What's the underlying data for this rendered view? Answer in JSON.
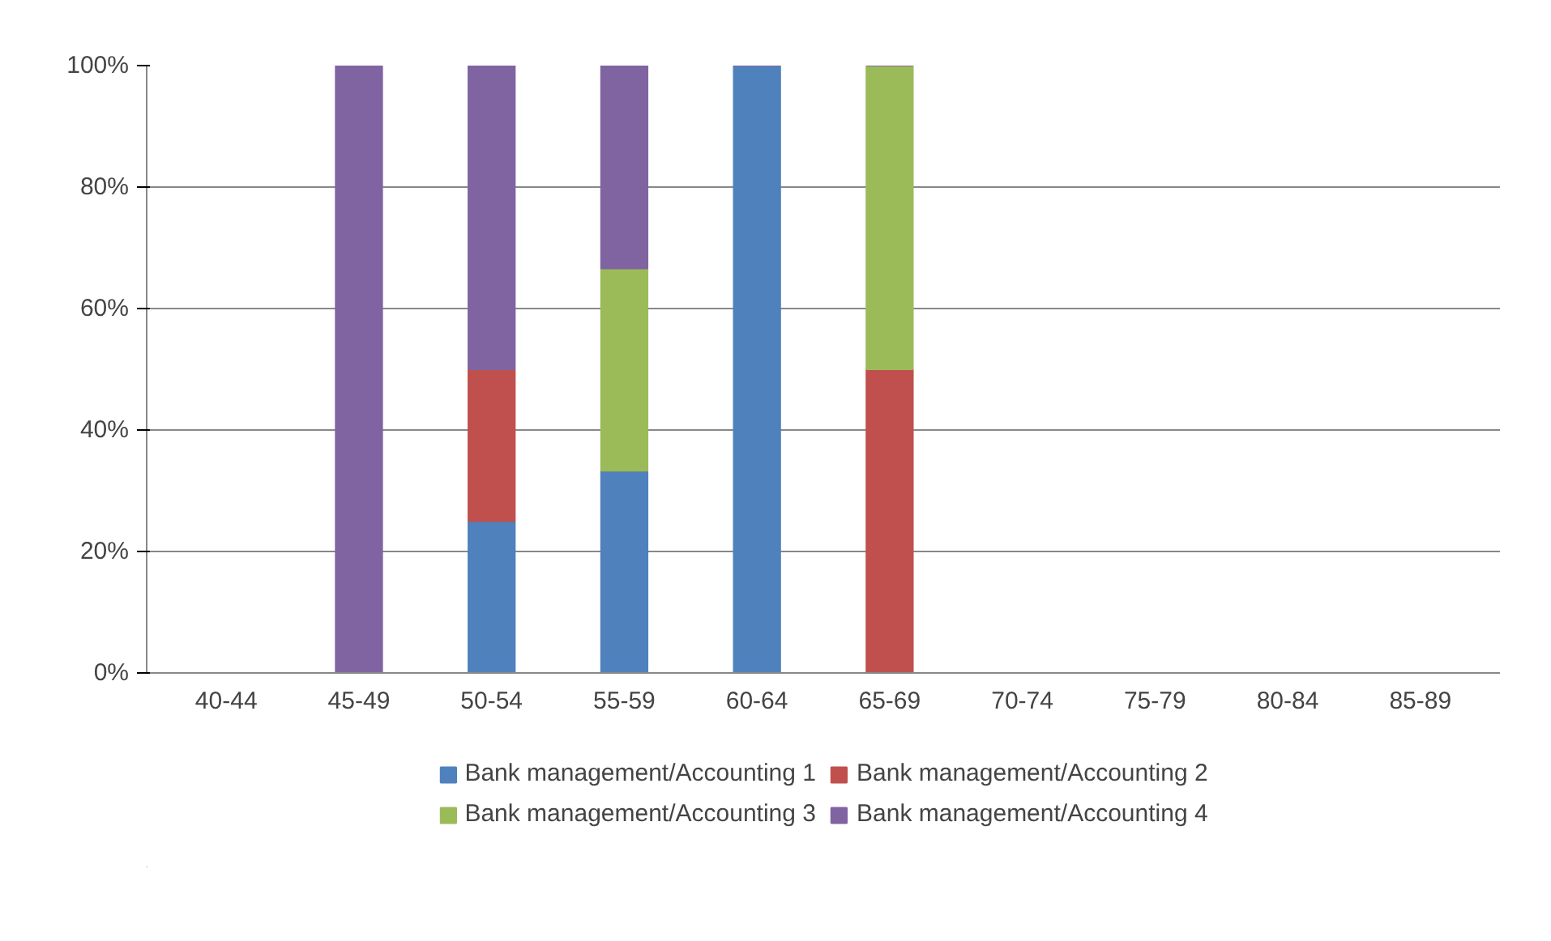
{
  "chart_data": {
    "type": "bar",
    "stacked": true,
    "categories": [
      "40-44",
      "45-49",
      "50-54",
      "55-59",
      "60-64",
      "65-69",
      "70-74",
      "75-79",
      "80-84",
      "85-89"
    ],
    "series": [
      {
        "name": "Bank management/Accounting 1",
        "color": "#4f81bd",
        "values": [
          0,
          0,
          25,
          33.3,
          100,
          0,
          0,
          0,
          0,
          0
        ]
      },
      {
        "name": "Bank management/Accounting 2",
        "color": "#c0504d",
        "values": [
          0,
          0,
          25,
          0,
          0,
          50,
          0,
          0,
          0,
          0
        ]
      },
      {
        "name": "Bank management/Accounting 3",
        "color": "#9bbb59",
        "values": [
          0,
          0,
          0,
          33.3,
          0,
          50,
          0,
          0,
          0,
          0
        ]
      },
      {
        "name": "Bank management/Accounting 4",
        "color": "#8064a2",
        "values": [
          0,
          100,
          50,
          33.4,
          0,
          0,
          0,
          0,
          0,
          0
        ]
      }
    ],
    "ylim": [
      0,
      100
    ],
    "yticks": [
      {
        "value": 0,
        "label": "0%"
      },
      {
        "value": 20,
        "label": "20%"
      },
      {
        "value": 40,
        "label": "40%"
      },
      {
        "value": 60,
        "label": "60%"
      },
      {
        "value": 80,
        "label": "80%"
      },
      {
        "value": 100,
        "label": "100%"
      }
    ],
    "grid": "y",
    "legend": "bottom"
  }
}
